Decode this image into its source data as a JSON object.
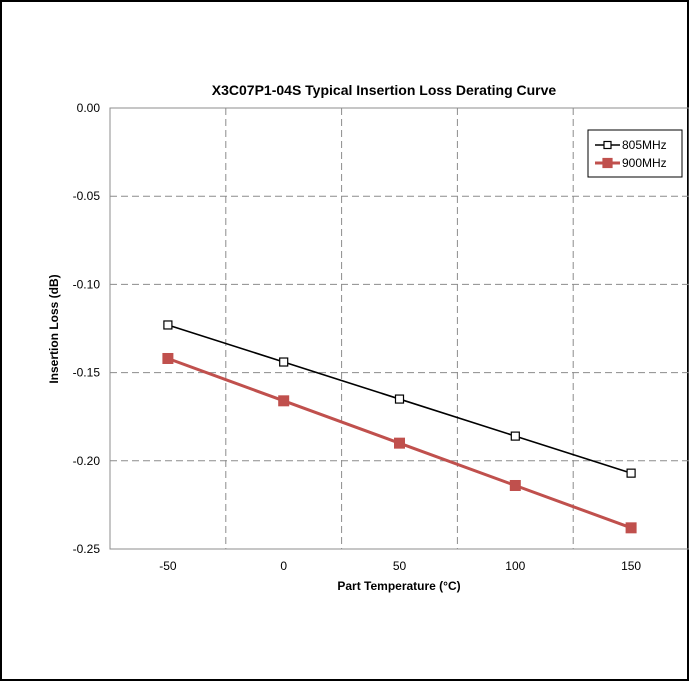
{
  "chart_data": {
    "type": "line",
    "title": "X3C07P1-04S Typical Insertion Loss Derating Curve",
    "xlabel": "Part Temperature (°C)",
    "ylabel": "Insertion Loss (dB)",
    "xlim": [
      -75,
      175
    ],
    "ylim": [
      -0.25,
      0.0
    ],
    "grid": true,
    "legend_position": "top-right",
    "x_ticks": [
      -50,
      0,
      50,
      100,
      150
    ],
    "x_tick_labels": [
      "-50",
      "0",
      "50",
      "100",
      "150"
    ],
    "y_ticks": [
      0.0,
      -0.05,
      -0.1,
      -0.15,
      -0.2,
      -0.25
    ],
    "y_tick_labels": [
      "0.00",
      "-0.05",
      "-0.10",
      "-0.15",
      "-0.20",
      "-0.25"
    ],
    "x": [
      -50,
      0,
      50,
      100,
      150
    ],
    "series": [
      {
        "name": "805MHz",
        "color": "#000000",
        "marker": "hollow-square",
        "values": [
          -0.123,
          -0.144,
          -0.165,
          -0.186,
          -0.207
        ]
      },
      {
        "name": "900MHz",
        "color": "#c0504d",
        "marker": "filled-square",
        "values": [
          -0.142,
          -0.166,
          -0.19,
          -0.214,
          -0.238
        ]
      }
    ]
  }
}
